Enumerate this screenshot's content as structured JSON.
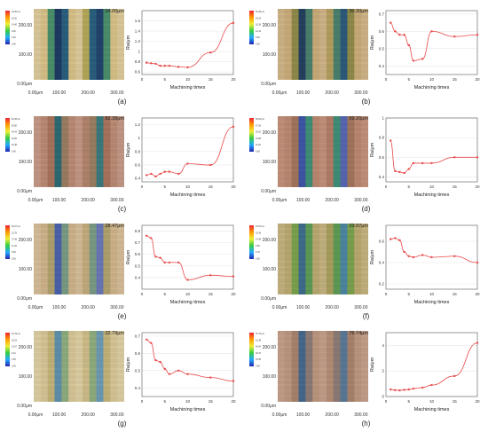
{
  "panels": [
    {
      "label": "(a)",
      "height": "24.00μm",
      "ytick_top": "200.00",
      "ytick_mid": "100.00",
      "ytick_bot": "0.00μm",
      "xticks": [
        "100.00",
        "200.00",
        "300.00"
      ],
      "legend": [
        "24.00 μm",
        "19.20",
        "14.40",
        "9.60",
        "4.80",
        "0.00"
      ],
      "colors": [
        "#1d3b63",
        "#22436c",
        "#2a5f7d",
        "#4a8e6a",
        "#b2a659",
        "#d5bf86",
        "#d9c79a"
      ]
    },
    {
      "label": "(b)",
      "height": "30.30μm",
      "ytick_top": "200.00",
      "ytick_mid": "100.00",
      "ytick_bot": "0.00μm",
      "xticks": [
        "100.00",
        "200.00",
        "300.00"
      ],
      "legend": [
        "30.30 μm",
        "24.24",
        "18.18",
        "12.12",
        "6.06",
        "0.00"
      ],
      "colors": [
        "#24405f",
        "#2e5a7a",
        "#4b7f6c",
        "#8f8a4a",
        "#b39d5f",
        "#c7aa78",
        "#cdb286"
      ]
    },
    {
      "label": "(c)",
      "height": "82.38μm",
      "ytick_top": "200.00",
      "ytick_mid": "100.00",
      "ytick_bot": "0.00μm",
      "xticks": [
        "100.00",
        "200.00",
        "300.00"
      ],
      "legend": [
        "82.38 μm",
        "65.90",
        "49.43",
        "32.95",
        "16.48",
        "0.00"
      ],
      "colors": [
        "#2d6a72",
        "#3a7a7e",
        "#9a7d62",
        "#a7735c",
        "#b0836c",
        "#b98a74",
        "#c19684"
      ]
    },
    {
      "label": "(d)",
      "height": "59.20μm",
      "ytick_top": "200.00",
      "ytick_mid": "100.00",
      "ytick_bot": "0.00μm",
      "xticks": [
        "100.00",
        "200.00",
        "300.00"
      ],
      "legend": [
        "59.20 μm",
        "47.36",
        "35.52",
        "23.68",
        "11.84",
        "0.00"
      ],
      "colors": [
        "#3f55a5",
        "#5766b0",
        "#3f8e76",
        "#a2745c",
        "#b07c66",
        "#b98770",
        "#c08f7a"
      ]
    },
    {
      "label": "(e)",
      "height": "28.47μm",
      "ytick_top": "200.00",
      "ytick_mid": "100.00",
      "ytick_bot": "0.00μm",
      "xticks": [
        "100.00",
        "200.00",
        "300.00"
      ],
      "legend": [
        "28.47 μm",
        "22.78",
        "17.08",
        "11.39",
        "5.69",
        "0.00"
      ],
      "colors": [
        "#4a62a8",
        "#6877b4",
        "#7a9a84",
        "#b0a06e",
        "#c0aa7c",
        "#cbb28a",
        "#d2ba96"
      ]
    },
    {
      "label": "(f)",
      "height": "23.97μm",
      "ytick_top": "200.00",
      "ytick_mid": "100.00",
      "ytick_bot": "0.00μm",
      "xticks": [
        "100.00",
        "200.00",
        "300.00"
      ],
      "legend": [
        "23.97 μm",
        "19.18",
        "14.38",
        "9.59",
        "4.79",
        "0.00"
      ],
      "colors": [
        "#3e6c8c",
        "#4d86a0",
        "#5e9a56",
        "#7aa14d",
        "#a69d5d",
        "#b8a870",
        "#c2b07e"
      ]
    },
    {
      "label": "(g)",
      "height": "22.79μm",
      "ytick_top": "200.00",
      "ytick_mid": "100.00",
      "ytick_bot": "0.00μm",
      "xticks": [
        "100.00",
        "200.00",
        "300.00"
      ],
      "legend": [
        "22.79 μm",
        "18.23",
        "13.67",
        "9.12",
        "4.56",
        "0.00"
      ],
      "colors": [
        "#5f8fa8",
        "#6c9ab2",
        "#8eaa7e",
        "#c2b27a",
        "#cdbb88",
        "#d4c495",
        "#dacba0"
      ]
    },
    {
      "label": "(h)",
      "height": "76.74μm",
      "ytick_top": "200.00",
      "ytick_mid": "100.00",
      "ytick_bot": "0.00μm",
      "xticks": [
        "100.00",
        "200.00",
        "300.00"
      ],
      "legend": [
        "76.74 μm",
        "61.39",
        "46.04",
        "30.70",
        "15.35",
        "0.00"
      ],
      "colors": [
        "#46688c",
        "#5a7896",
        "#8b7a74",
        "#a6826c",
        "#b28c74",
        "#ba957e",
        "#c19d88"
      ]
    }
  ],
  "chart_data": [
    {
      "type": "line",
      "panel": "(a)",
      "xlabel": "Machining times",
      "ylabel": "Ra/μm",
      "xlim": [
        0,
        20
      ],
      "ylim": [
        0.55,
        1.8
      ],
      "xticks": [
        0,
        5,
        10,
        15,
        20
      ],
      "yticks": [
        0.6,
        0.8,
        1.0,
        1.2,
        1.4,
        1.6
      ],
      "x": [
        1,
        2,
        3,
        4,
        5,
        6,
        8,
        10,
        15,
        20
      ],
      "y": [
        0.78,
        0.77,
        0.76,
        0.72,
        0.72,
        0.72,
        0.7,
        0.69,
        0.98,
        1.56
      ]
    },
    {
      "type": "line",
      "panel": "(b)",
      "xlabel": "Machining times",
      "ylabel": "Ra/μm",
      "xlim": [
        0,
        20
      ],
      "ylim": [
        0.35,
        0.72
      ],
      "xticks": [
        0,
        5,
        10,
        15,
        20
      ],
      "yticks": [
        0.4,
        0.5,
        0.6,
        0.7
      ],
      "x": [
        1,
        2,
        3,
        4,
        5,
        6,
        8,
        10,
        15,
        20
      ],
      "y": [
        0.65,
        0.6,
        0.58,
        0.58,
        0.52,
        0.43,
        0.44,
        0.6,
        0.57,
        0.58
      ]
    },
    {
      "type": "line",
      "panel": "(c)",
      "xlabel": "Machining times",
      "ylabel": "Ra/μm",
      "xlim": [
        0,
        20
      ],
      "ylim": [
        0.35,
        1.3
      ],
      "xticks": [
        0,
        5,
        10,
        15,
        20
      ],
      "yticks": [
        0.4,
        0.6,
        0.8,
        1.0,
        1.2
      ],
      "x": [
        1,
        2,
        3,
        4,
        5,
        6,
        8,
        10,
        15,
        20
      ],
      "y": [
        0.45,
        0.47,
        0.43,
        0.47,
        0.5,
        0.5,
        0.47,
        0.62,
        0.6,
        1.17
      ]
    },
    {
      "type": "line",
      "panel": "(d)",
      "xlabel": "Machining times",
      "ylabel": "Ra/μm",
      "xlim": [
        0,
        20
      ],
      "ylim": [
        0.35,
        1.0
      ],
      "xticks": [
        0,
        5,
        10,
        15,
        20
      ],
      "yticks": [
        0.4,
        0.6,
        0.8,
        1.0
      ],
      "x": [
        1,
        2,
        3,
        4,
        5,
        6,
        8,
        10,
        15,
        20
      ],
      "y": [
        0.77,
        0.46,
        0.45,
        0.44,
        0.48,
        0.54,
        0.54,
        0.54,
        0.6,
        0.6
      ]
    },
    {
      "type": "line",
      "panel": "(e)",
      "xlabel": "Machining times",
      "ylabel": "Ra/μm",
      "xlim": [
        0,
        20
      ],
      "ylim": [
        0.3,
        0.85
      ],
      "xticks": [
        0,
        5,
        10,
        15,
        20
      ],
      "yticks": [
        0.4,
        0.5,
        0.6,
        0.7,
        0.8
      ],
      "x": [
        1,
        2,
        3,
        4,
        5,
        6,
        8,
        10,
        15,
        20
      ],
      "y": [
        0.76,
        0.74,
        0.58,
        0.57,
        0.53,
        0.53,
        0.53,
        0.38,
        0.42,
        0.41
      ]
    },
    {
      "type": "line",
      "panel": "(f)",
      "xlabel": "Machining times",
      "ylabel": "Ra/μm",
      "xlim": [
        0,
        20
      ],
      "ylim": [
        0.15,
        0.75
      ],
      "xticks": [
        0,
        5,
        10,
        15,
        20
      ],
      "yticks": [
        0.2,
        0.4,
        0.6
      ],
      "x": [
        1,
        2,
        3,
        4,
        5,
        6,
        8,
        10,
        15,
        20
      ],
      "y": [
        0.62,
        0.63,
        0.61,
        0.5,
        0.46,
        0.45,
        0.47,
        0.45,
        0.46,
        0.4
      ]
    },
    {
      "type": "line",
      "panel": "(g)",
      "xlabel": "Machining times",
      "ylabel": "Ra/μm",
      "xlim": [
        0,
        20
      ],
      "ylim": [
        0.35,
        0.72
      ],
      "xticks": [
        0,
        5,
        10,
        15,
        20
      ],
      "yticks": [
        0.4,
        0.5,
        0.6,
        0.7
      ],
      "x": [
        1,
        2,
        3,
        4,
        5,
        6,
        8,
        10,
        15,
        20
      ],
      "y": [
        0.68,
        0.66,
        0.56,
        0.55,
        0.51,
        0.48,
        0.5,
        0.48,
        0.46,
        0.44
      ]
    },
    {
      "type": "line",
      "panel": "(h)",
      "xlabel": "Machining times",
      "ylabel": "Ra/μm",
      "xlim": [
        0,
        20
      ],
      "ylim": [
        0,
        5
      ],
      "xticks": [
        0,
        5,
        10,
        15,
        20
      ],
      "yticks": [
        0,
        2,
        4
      ],
      "x": [
        1,
        2,
        3,
        4,
        5,
        6,
        8,
        10,
        15,
        20
      ],
      "y": [
        0.55,
        0.5,
        0.48,
        0.52,
        0.55,
        0.62,
        0.7,
        0.9,
        1.6,
        4.2
      ]
    }
  ]
}
